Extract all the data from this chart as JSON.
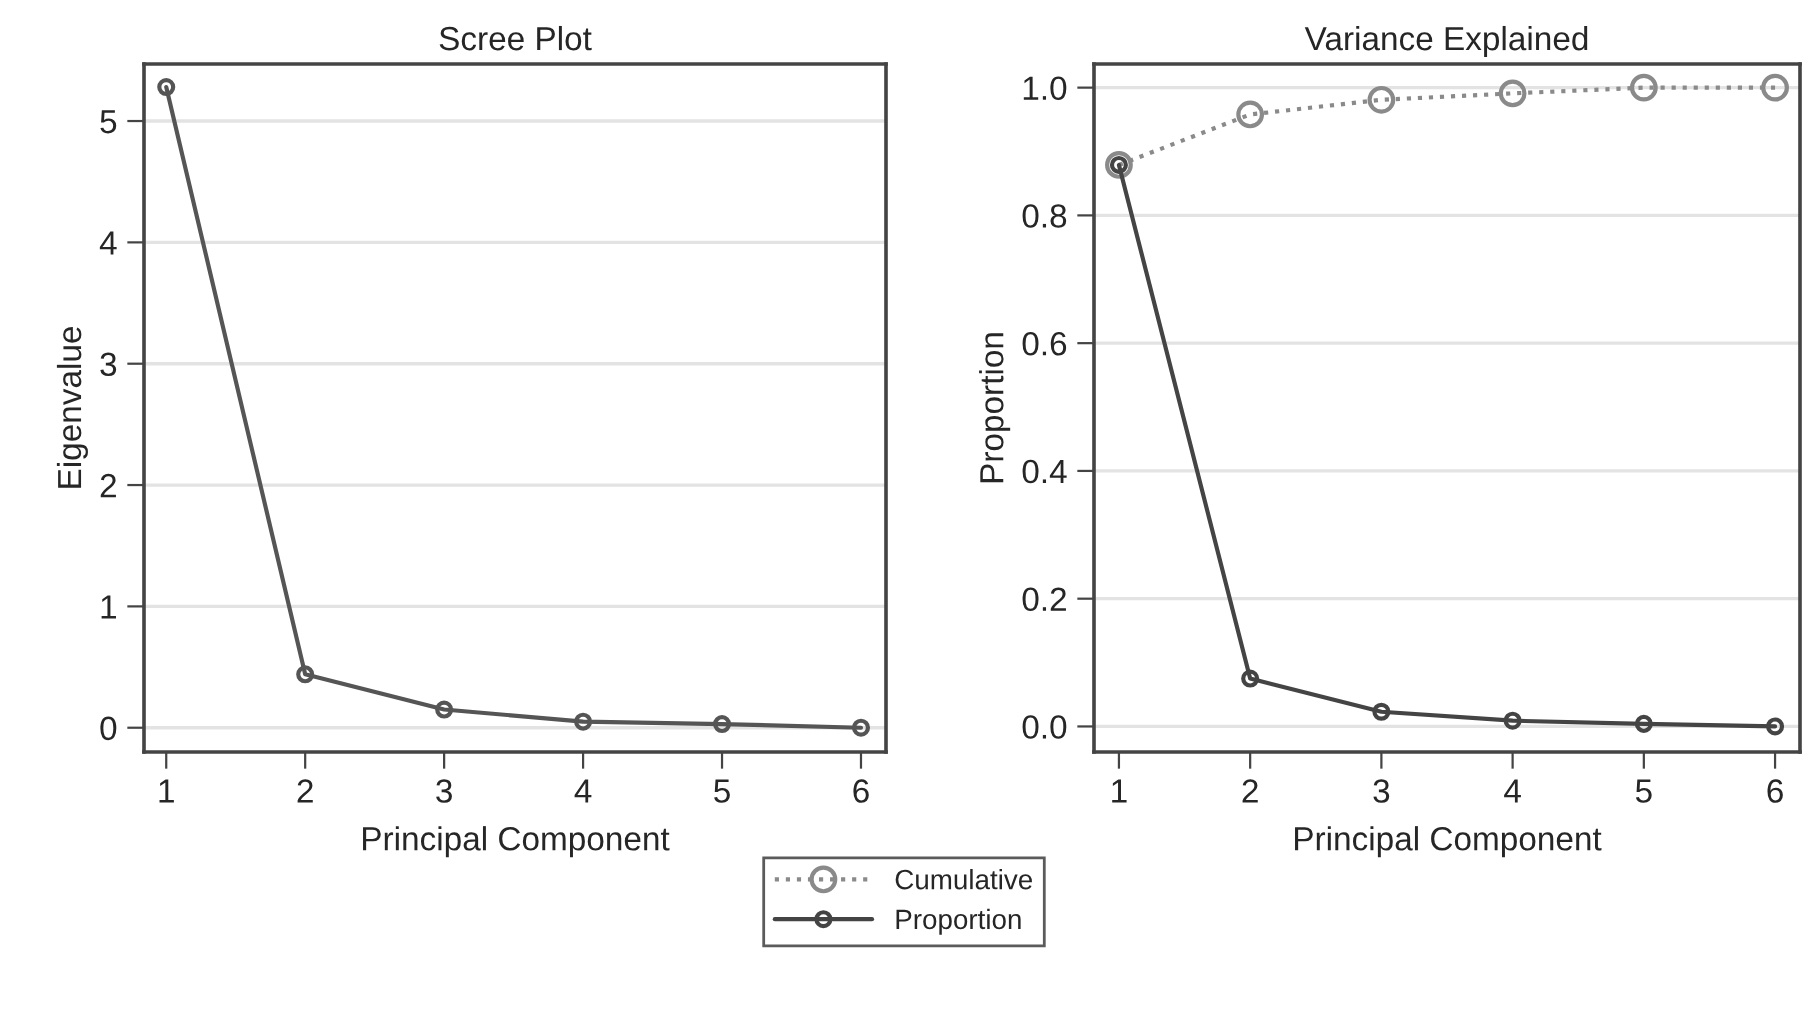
{
  "chart_data": [
    {
      "type": "line",
      "title": "Scree Plot",
      "xlabel": "Principal Component",
      "ylabel": "Eigenvalue",
      "x": [
        1,
        2,
        3,
        4,
        5,
        6
      ],
      "xlim": [
        0.84,
        6.18
      ],
      "xticks": [
        1,
        2,
        3,
        4,
        5,
        6
      ],
      "ylim": [
        -0.2,
        5.47
      ],
      "yticks": [
        0,
        1,
        2,
        3,
        4,
        5
      ],
      "grid": "y",
      "marker": "circle",
      "series": [
        {
          "color": "#555555",
          "values": [
            5.28,
            0.44,
            0.15,
            0.05,
            0.03,
            0.0
          ],
          "line_style": "solid"
        }
      ]
    },
    {
      "type": "line",
      "title": "Variance Explained",
      "xlabel": "Principal Component",
      "ylabel": "Proportion",
      "x": [
        1,
        2,
        3,
        4,
        5,
        6
      ],
      "xlim": [
        0.81,
        6.19
      ],
      "xticks": [
        1,
        2,
        3,
        4,
        5,
        6
      ],
      "ylim": [
        -0.04,
        1.037
      ],
      "yticks": [
        {
          "value": 0,
          "label": "0.0"
        },
        {
          "value": 0.2,
          "label": "0.2"
        },
        {
          "value": 0.4,
          "label": "0.4"
        },
        {
          "value": 0.6,
          "label": "0.6"
        },
        {
          "value": 0.8,
          "label": "0.8"
        },
        {
          "value": 1,
          "label": "1.0"
        }
      ],
      "grid": "y",
      "marker": "circle",
      "legend": "bottom",
      "series": [
        {
          "name": "Cumulative",
          "color": "#8a8a8a",
          "values": [
            0.879,
            0.958,
            0.981,
            0.991,
            1.0,
            1.0
          ],
          "line_style": "dotted"
        },
        {
          "name": "Proportion",
          "color": "#444444",
          "values": [
            0.879,
            0.075,
            0.023,
            0.009,
            0.004,
            0.0
          ],
          "line_style": "solid"
        }
      ]
    }
  ]
}
